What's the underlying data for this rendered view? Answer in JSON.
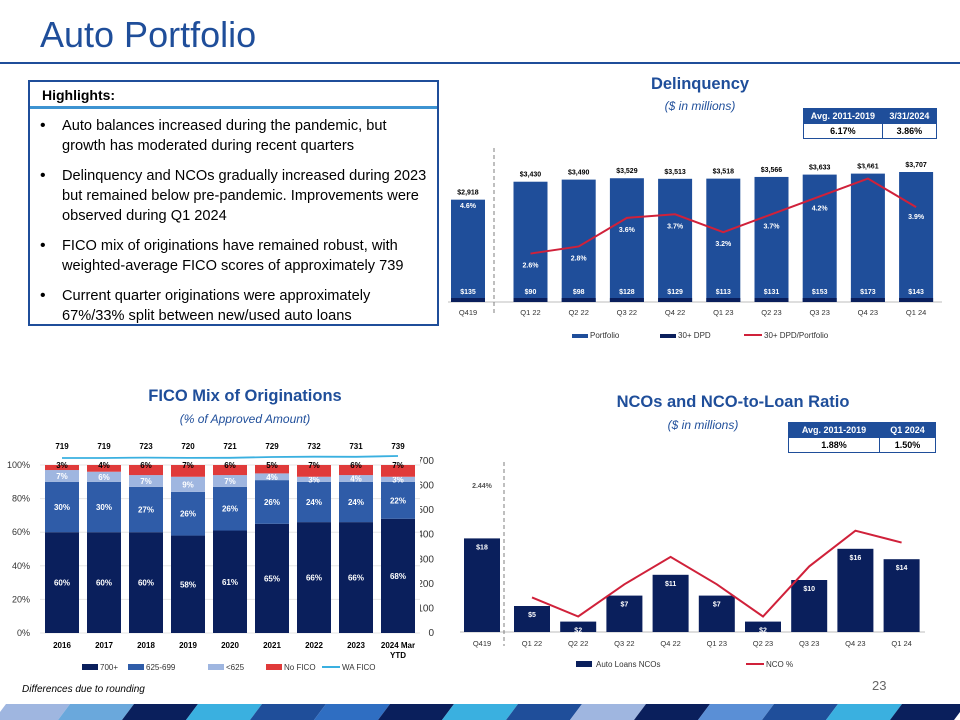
{
  "page": {
    "title": "Auto Portfolio",
    "footnote": "Differences due to rounding",
    "page_number": "23"
  },
  "highlights": {
    "title": "Highlights:",
    "items": [
      "Auto balances increased during the pandemic, but growth has moderated during recent quarters",
      "Delinquency and NCOs gradually increased during 2023 but remained below pre-pandemic. Improvements were observed during Q1 2024",
      "FICO mix of originations have remained robust, with weighted-average FICO scores of approximately 739",
      "Current quarter originations were approximately 67%/33% split between new/used auto loans"
    ]
  },
  "delinquency": {
    "title": "Delinquency",
    "subtitle": "($ in millions)",
    "table": {
      "headers": [
        "Avg. 2011-2019",
        "3/31/2024"
      ],
      "values": [
        "6.17%",
        "3.86%"
      ]
    }
  },
  "fico": {
    "title": "FICO Mix of Originations",
    "subtitle": "(% of Approved Amount)"
  },
  "nco": {
    "title": "NCOs and NCO-to-Loan Ratio",
    "subtitle": "($ in millions)",
    "table": {
      "headers": [
        "Avg. 2011-2019",
        "Q1 2024"
      ],
      "values": [
        "1.88%",
        "1.50%"
      ]
    }
  },
  "colors": {
    "navy": "#0a1f5c",
    "dark_blue": "#1f4e9a",
    "mid_blue": "#2f5ca8",
    "light_blue": "#9fb6e0",
    "red": "#e03a3a",
    "crimson": "#d0213a",
    "cyan": "#3ab0e0"
  },
  "chart_data": [
    {
      "id": "delinquency",
      "type": "bar",
      "categories": [
        "Q419",
        "Q1 22",
        "Q2 22",
        "Q3 22",
        "Q4 22",
        "Q1 23",
        "Q2 23",
        "Q3 23",
        "Q4 23",
        "Q1 24"
      ],
      "series": [
        {
          "name": "Portfolio",
          "values": [
            2918,
            3430,
            3490,
            3529,
            3513,
            3518,
            3566,
            3633,
            3661,
            3707
          ],
          "labels": [
            "$2,918",
            "$3,430",
            "$3,490",
            "$3,529",
            "$3,513",
            "$3,518",
            "$3,566",
            "$3,633",
            "$3,661",
            "$3,707"
          ]
        },
        {
          "name": "30+ DPD",
          "values": [
            135,
            90,
            98,
            128,
            129,
            113,
            131,
            153,
            173,
            143
          ],
          "labels": [
            "$135",
            "$90",
            "$98",
            "$128",
            "$129",
            "$113",
            "$131",
            "$153",
            "$173",
            "$143"
          ]
        },
        {
          "name": "30+ DPD/Portfolio",
          "type": "line",
          "values": [
            4.6,
            2.6,
            2.8,
            3.6,
            3.7,
            3.2,
            3.7,
            4.2,
            4.7,
            3.9
          ],
          "labels": [
            "4.6%",
            "2.6%",
            "2.8%",
            "3.6%",
            "3.7%",
            "3.2%",
            "3.7%",
            "4.2%",
            "4.7%",
            "3.9%"
          ]
        }
      ],
      "legend": [
        "Portfolio",
        "30+ DPD",
        "30+ DPD/Portfolio"
      ]
    },
    {
      "id": "fico",
      "type": "bar",
      "stacked": true,
      "categories": [
        "2016",
        "2017",
        "2018",
        "2019",
        "2020",
        "2021",
        "2022",
        "2023",
        "2024 Mar YTD"
      ],
      "series": [
        {
          "name": "700+",
          "values": [
            60,
            60,
            60,
            58,
            61,
            65,
            66,
            66,
            68
          ]
        },
        {
          "name": "625-699",
          "values": [
            30,
            30,
            27,
            26,
            26,
            26,
            24,
            24,
            22
          ]
        },
        {
          "name": "<625",
          "values": [
            7,
            6,
            7,
            9,
            7,
            4,
            3,
            4,
            3
          ]
        },
        {
          "name": "No FICO",
          "values": [
            3,
            4,
            6,
            7,
            6,
            5,
            7,
            6,
            7
          ]
        },
        {
          "name": "WA FICO",
          "type": "line",
          "values": [
            719,
            719,
            723,
            720,
            721,
            729,
            732,
            731,
            739
          ]
        }
      ],
      "y_ticks": [
        "0%",
        "20%",
        "40%",
        "60%",
        "80%",
        "100%"
      ],
      "ylim": [
        0,
        100
      ],
      "legend": [
        "700+",
        "625-699",
        "<625",
        "No FICO",
        "WA FICO"
      ]
    },
    {
      "id": "nco",
      "type": "bar",
      "categories": [
        "Q419",
        "Q1 22",
        "Q2 22",
        "Q3 22",
        "Q4 22",
        "Q1 23",
        "Q2 23",
        "Q3 23",
        "Q4 23",
        "Q1 24"
      ],
      "series": [
        {
          "name": "Auto Loans NCOs",
          "values": [
            18,
            5,
            2,
            7,
            11,
            7,
            2,
            10,
            16,
            14
          ],
          "labels": [
            "$18",
            "$5",
            "$2",
            "$7",
            "$11",
            "$7",
            "$2",
            "$10",
            "$16",
            "$14"
          ]
        },
        {
          "name": "NCO %",
          "type": "line",
          "values": [
            2.44,
            0.58,
            0.26,
            0.8,
            1.26,
            0.8,
            0.26,
            1.1,
            1.7,
            1.5
          ]
        }
      ],
      "point_labels": [
        {
          "index": 0,
          "text": "2.44%"
        },
        {
          "index": 9,
          "text": "1.50%"
        }
      ],
      "y_ticks": [
        "0",
        "100",
        "200",
        "300",
        "400",
        "500",
        "600",
        "700"
      ],
      "ylim": [
        0,
        700
      ],
      "legend": [
        "Auto Loans NCOs",
        "NCO %"
      ]
    }
  ]
}
